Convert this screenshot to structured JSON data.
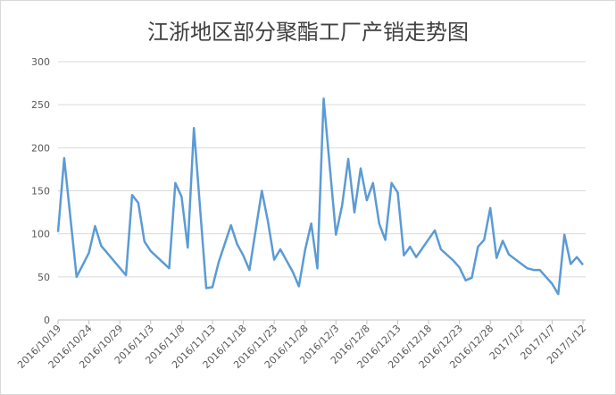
{
  "chart_data": {
    "type": "line",
    "title": "江浙地区部分聚酯工厂产销走势图",
    "x": [
      "2016/10/19",
      "2016/10/20",
      "2016/10/22",
      "2016/10/24",
      "2016/10/25",
      "2016/10/26",
      "2016/10/30",
      "2016/10/31",
      "2016/11/1",
      "2016/11/2",
      "2016/11/3",
      "2016/11/6",
      "2016/11/7",
      "2016/11/8",
      "2016/11/9",
      "2016/11/10",
      "2016/11/12",
      "2016/11/13",
      "2016/11/14",
      "2016/11/16",
      "2016/11/17",
      "2016/11/18",
      "2016/11/19",
      "2016/11/21",
      "2016/11/22",
      "2016/11/23",
      "2016/11/24",
      "2016/11/26",
      "2016/11/27",
      "2016/11/28",
      "2016/11/29",
      "2016/11/30",
      "2016/12/1",
      "2016/12/3",
      "2016/12/4",
      "2016/12/5",
      "2016/12/6",
      "2016/12/7",
      "2016/12/8",
      "2016/12/9",
      "2016/12/10",
      "2016/12/11",
      "2016/12/12",
      "2016/12/13",
      "2016/12/14",
      "2016/12/15",
      "2016/12/16",
      "2016/12/19",
      "2016/12/20",
      "2016/12/22",
      "2016/12/23",
      "2016/12/24",
      "2016/12/25",
      "2016/12/26",
      "2016/12/27",
      "2016/12/28",
      "2016/12/29",
      "2016/12/30",
      "2016/12/31",
      "2017/1/3",
      "2017/1/4",
      "2017/1/5",
      "2017/1/7",
      "2017/1/8",
      "2017/1/9",
      "2017/1/10",
      "2017/1/11",
      "2017/1/12"
    ],
    "series": [
      {
        "color": "#5b9bd5",
        "values": [
          102,
          188,
          50,
          78,
          109,
          86,
          52,
          145,
          136,
          91,
          80,
          60,
          159,
          143,
          84,
          223,
          37,
          38,
          67,
          110,
          88,
          75,
          58,
          150,
          114,
          70,
          82,
          56,
          39,
          81,
          112,
          60,
          257,
          99,
          133,
          187,
          125,
          176,
          139,
          159,
          112,
          93,
          159,
          148,
          75,
          85,
          73,
          104,
          82,
          69,
          61,
          46,
          49,
          85,
          93,
          130,
          72,
          92,
          76,
          60,
          58,
          58,
          42,
          30,
          99,
          65,
          73,
          64
        ]
      }
    ],
    "xlim": [
      "2016/10/19",
      "2017/1/12"
    ],
    "xticks": [
      "2016/10/19",
      "2016/10/24",
      "2016/10/29",
      "2016/11/3",
      "2016/11/8",
      "2016/11/13",
      "2016/11/18",
      "2016/11/23",
      "2016/11/28",
      "2016/12/3",
      "2016/12/8",
      "2016/12/13",
      "2016/12/18",
      "2016/12/23",
      "2016/12/28",
      "2017/1/2",
      "2017/1/7",
      "2017/1/12"
    ],
    "ylim": [
      0,
      300
    ],
    "yticks": [
      0,
      50,
      100,
      150,
      200,
      250,
      300
    ],
    "grid": true
  }
}
